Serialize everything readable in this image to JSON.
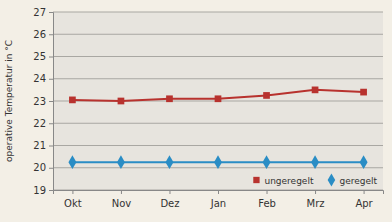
{
  "chart_data": {
    "type": "line",
    "y_label": "operative Temperatur in °C",
    "categories": [
      "Okt",
      "Nov",
      "Dez",
      "Jan",
      "Feb",
      "Mrz",
      "Apr"
    ],
    "series": [
      {
        "name": "ungeregelt",
        "color": "#b8322e",
        "marker": "square",
        "values": [
          23.05,
          23.0,
          23.1,
          23.1,
          23.25,
          23.5,
          23.4
        ]
      },
      {
        "name": "geregelt",
        "color": "#2a8dc5",
        "marker": "diamond",
        "values": [
          20.25,
          20.25,
          20.25,
          20.25,
          20.25,
          20.25,
          20.25
        ]
      }
    ],
    "ylim": [
      19,
      27
    ],
    "yticks": [
      19,
      20,
      21,
      22,
      23,
      24,
      25,
      26,
      27
    ],
    "grid": true,
    "legend": "lower right"
  }
}
